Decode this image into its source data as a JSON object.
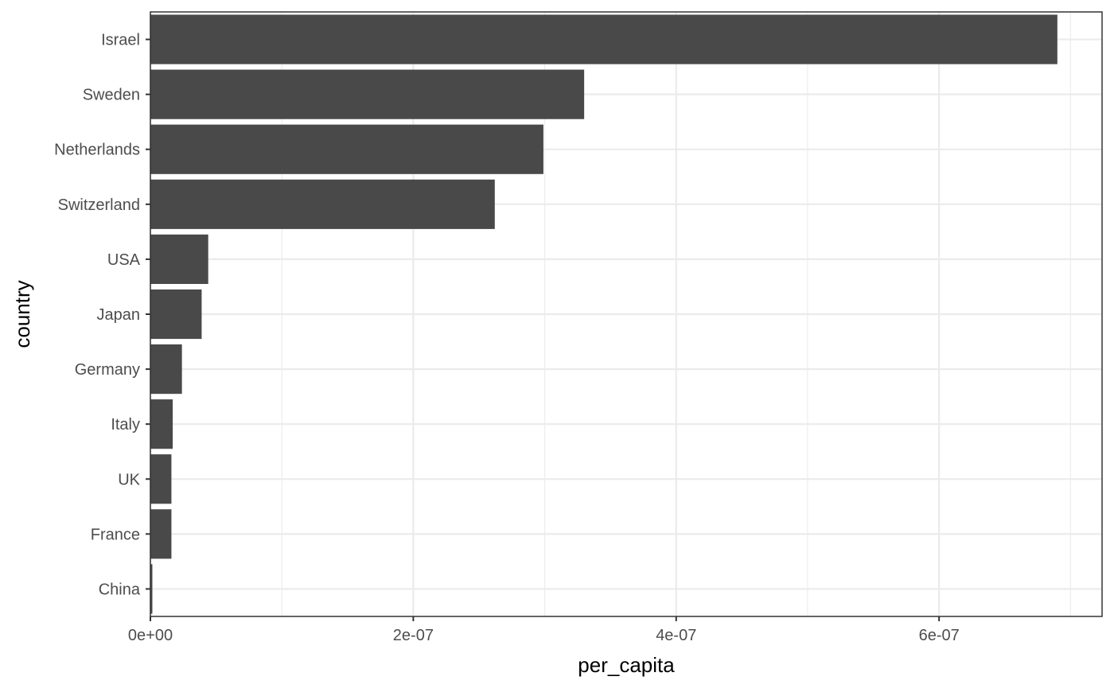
{
  "chart_data": {
    "type": "bar",
    "orientation": "horizontal",
    "categories": [
      "Israel",
      "Sweden",
      "Netherlands",
      "Switzerland",
      "USA",
      "Japan",
      "Germany",
      "Italy",
      "UK",
      "France",
      "China"
    ],
    "values": [
      6.9e-07,
      3.3e-07,
      2.99e-07,
      2.62e-07,
      4.4e-08,
      3.9e-08,
      2.4e-08,
      1.7e-08,
      1.6e-08,
      1.6e-08,
      1.5e-09
    ],
    "xlabel": "per_capita",
    "ylabel": "country",
    "xlim": [
      0,
      7.24e-07
    ],
    "x_ticks": [
      0,
      2e-07,
      4e-07,
      6e-07
    ],
    "x_tick_labels": [
      "0e+00",
      "2e-07",
      "4e-07",
      "6e-07"
    ],
    "x_minor_ticks": [
      1e-07,
      3e-07,
      5e-07,
      7e-07
    ],
    "grid": true,
    "legend": "none",
    "bar_color": "#494949",
    "grid_color": "#ebebeb",
    "panel_border_color": "#333333",
    "tick_label_color": "#4d4d4d"
  }
}
